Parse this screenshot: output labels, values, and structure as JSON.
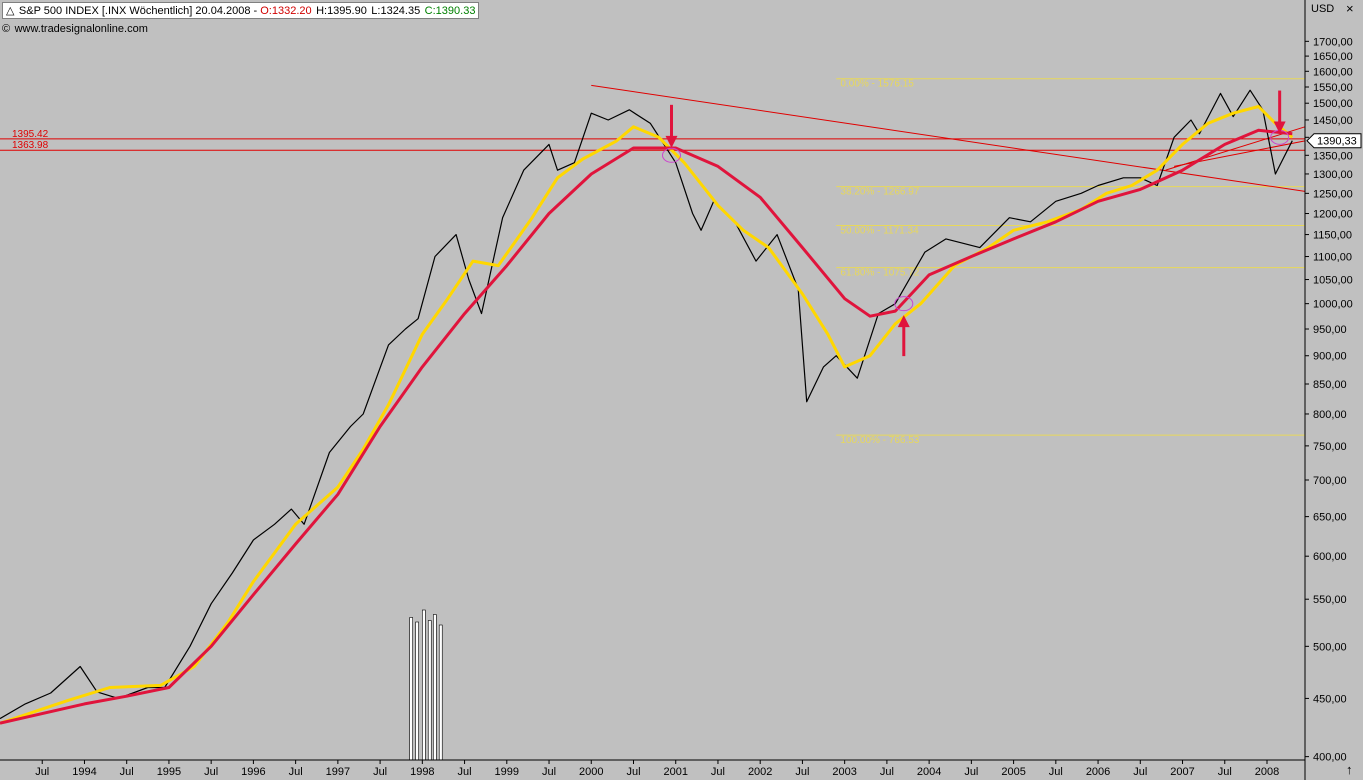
{
  "header": {
    "title": "S&P 500 INDEX [.INX  Wöchentlich] 20.04.2008 - ",
    "open": "O:1332.20",
    "high": " H:1395.90",
    "low": " L:1324.35",
    "close": " C:1390.33",
    "watermark": "www.tradesignalonline.com",
    "currency": "USD"
  },
  "colors": {
    "background": "#c0c0c0",
    "price": "#000000",
    "ma_fast": "#ffd700",
    "ma_slow": "#e0143c",
    "fib": "#e8d85a",
    "level": "#e00000",
    "annotation": "#e0143c",
    "highlight_circle": "#cc44cc"
  },
  "chart_data": {
    "type": "line",
    "scale": "log",
    "ylim": [
      380,
      1750
    ],
    "xlim": [
      1993.0,
      2008.45
    ],
    "grid": false,
    "legend": "none",
    "y_ticks": [
      1700,
      1650,
      1600,
      1550,
      1500,
      1450,
      1400,
      1350,
      1300,
      1250,
      1200,
      1150,
      1100,
      1050,
      1000,
      950,
      900,
      850,
      800,
      750,
      700,
      650,
      600,
      550,
      500,
      450,
      400
    ],
    "y_tick_labels": [
      "1700,00",
      "1650,00",
      "1600,00",
      "1550,00",
      "1500,00",
      "1450,00",
      "1400,00",
      "1350,00",
      "1300,00",
      "1250,00",
      "1200,00",
      "1150,00",
      "1100,00",
      "1050,00",
      "1000,00",
      "950,00",
      "900,00",
      "850,00",
      "800,00",
      "750,00",
      "700,00",
      "650,00",
      "600,00",
      "550,00",
      "500,00",
      "450,00",
      "400,00"
    ],
    "x_ticks": [
      {
        "x": 1993.5,
        "label": "Jul"
      },
      {
        "x": 1994.0,
        "label": "1994"
      },
      {
        "x": 1994.5,
        "label": "Jul"
      },
      {
        "x": 1995.0,
        "label": "1995"
      },
      {
        "x": 1995.5,
        "label": "Jul"
      },
      {
        "x": 1996.0,
        "label": "1996"
      },
      {
        "x": 1996.5,
        "label": "Jul"
      },
      {
        "x": 1997.0,
        "label": "1997"
      },
      {
        "x": 1997.5,
        "label": "Jul"
      },
      {
        "x": 1998.0,
        "label": "1998"
      },
      {
        "x": 1998.5,
        "label": "Jul"
      },
      {
        "x": 1999.0,
        "label": "1999"
      },
      {
        "x": 1999.5,
        "label": "Jul"
      },
      {
        "x": 2000.0,
        "label": "2000"
      },
      {
        "x": 2000.5,
        "label": "Jul"
      },
      {
        "x": 2001.0,
        "label": "2001"
      },
      {
        "x": 2001.5,
        "label": "Jul"
      },
      {
        "x": 2002.0,
        "label": "2002"
      },
      {
        "x": 2002.5,
        "label": "Jul"
      },
      {
        "x": 2003.0,
        "label": "2003"
      },
      {
        "x": 2003.5,
        "label": "Jul"
      },
      {
        "x": 2004.0,
        "label": "2004"
      },
      {
        "x": 2004.5,
        "label": "Jul"
      },
      {
        "x": 2005.0,
        "label": "2005"
      },
      {
        "x": 2005.5,
        "label": "Jul"
      },
      {
        "x": 2006.0,
        "label": "2006"
      },
      {
        "x": 2006.5,
        "label": "Jul"
      },
      {
        "x": 2007.0,
        "label": "2007"
      },
      {
        "x": 2007.5,
        "label": "Jul"
      },
      {
        "x": 2008.0,
        "label": "2008"
      }
    ],
    "series": [
      {
        "key": "price",
        "x": [
          1993.0,
          1993.3,
          1993.6,
          1993.95,
          1994.15,
          1994.4,
          1994.75,
          1994.95,
          1995.25,
          1995.5,
          1995.75,
          1996.0,
          1996.25,
          1996.45,
          1996.6,
          1996.9,
          1997.15,
          1997.3,
          1997.6,
          1997.8,
          1997.95,
          1998.15,
          1998.4,
          1998.55,
          1998.7,
          1998.95,
          1999.2,
          1999.5,
          1999.6,
          1999.8,
          2000.0,
          2000.2,
          2000.45,
          2000.7,
          2001.0,
          2001.2,
          2001.3,
          2001.45,
          2001.7,
          2001.95,
          2002.2,
          2002.45,
          2002.55,
          2002.75,
          2002.9,
          2003.15,
          2003.4,
          2003.6,
          2003.95,
          2004.2,
          2004.6,
          2004.95,
          2005.2,
          2005.5,
          2005.8,
          2006.0,
          2006.3,
          2006.5,
          2006.7,
          2006.9,
          2007.1,
          2007.2,
          2007.45,
          2007.6,
          2007.8,
          2007.95,
          2008.1,
          2008.3
        ],
        "y": [
          432,
          445,
          455,
          480,
          456,
          450,
          460,
          460,
          500,
          545,
          580,
          620,
          640,
          660,
          640,
          740,
          780,
          800,
          920,
          950,
          970,
          1100,
          1150,
          1050,
          980,
          1190,
          1310,
          1380,
          1310,
          1330,
          1470,
          1450,
          1480,
          1440,
          1330,
          1200,
          1160,
          1230,
          1180,
          1090,
          1150,
          1030,
          820,
          880,
          900,
          860,
          980,
          1000,
          1110,
          1140,
          1120,
          1190,
          1180,
          1230,
          1250,
          1270,
          1290,
          1290,
          1270,
          1400,
          1450,
          1410,
          1530,
          1460,
          1540,
          1480,
          1300,
          1390.33
        ]
      },
      {
        "key": "ma_fast",
        "x": [
          1993.0,
          1993.8,
          1994.3,
          1994.9,
          1995.3,
          1995.7,
          1996.0,
          1996.5,
          1997.0,
          1997.3,
          1997.6,
          1998.0,
          1998.3,
          1998.6,
          1998.9,
          1999.3,
          1999.6,
          1999.9,
          2000.3,
          2000.5,
          2000.8,
          2001.1,
          2001.5,
          2001.8,
          2002.1,
          2002.5,
          2002.8,
          2003.0,
          2003.3,
          2003.6,
          2003.9,
          2004.3,
          2004.7,
          2005.0,
          2005.4,
          2005.8,
          2006.1,
          2006.4,
          2006.7,
          2007.0,
          2007.3,
          2007.6,
          2007.9,
          2008.1,
          2008.3
        ],
        "y": [
          428,
          448,
          460,
          462,
          480,
          525,
          570,
          640,
          690,
          745,
          815,
          940,
          1010,
          1090,
          1080,
          1190,
          1290,
          1340,
          1390,
          1430,
          1400,
          1330,
          1220,
          1160,
          1120,
          1020,
          940,
          880,
          900,
          960,
          1000,
          1080,
          1120,
          1160,
          1180,
          1210,
          1250,
          1270,
          1310,
          1380,
          1440,
          1470,
          1490,
          1440,
          1400
        ]
      },
      {
        "key": "ma_slow",
        "x": [
          1993.0,
          1994.0,
          1994.5,
          1995.0,
          1995.5,
          1996.0,
          1996.5,
          1997.0,
          1997.5,
          1998.0,
          1998.5,
          1999.0,
          1999.5,
          2000.0,
          2000.5,
          2001.0,
          2001.5,
          2002.0,
          2002.5,
          2003.0,
          2003.3,
          2003.6,
          2004.0,
          2004.5,
          2005.0,
          2005.5,
          2006.0,
          2006.5,
          2007.0,
          2007.5,
          2007.9,
          2008.3
        ],
        "y": [
          428,
          445,
          452,
          460,
          500,
          555,
          615,
          680,
          780,
          880,
          980,
          1080,
          1200,
          1300,
          1370,
          1370,
          1320,
          1240,
          1120,
          1010,
          975,
          985,
          1060,
          1100,
          1140,
          1180,
          1230,
          1260,
          1310,
          1380,
          1420,
          1410
        ]
      }
    ],
    "fibonacci": [
      {
        "label": "0.00% - 1576.15",
        "value": 1576.15
      },
      {
        "label": "38.20% - 1266.97",
        "value": 1266.97
      },
      {
        "label": "50.00% - 1171.34",
        "value": 1171.34
      },
      {
        "label": "61.80% - 1075.72",
        "value": 1075.72
      },
      {
        "label": "100.00% - 766.53",
        "value": 766.53
      }
    ],
    "levels": [
      {
        "label": "1395.42",
        "value": 1395.42
      },
      {
        "label": "1363.98",
        "value": 1363.98
      }
    ],
    "trendlines": [
      {
        "x": [
          2000.0,
          2008.45
        ],
        "y": [
          1555,
          1255
        ]
      },
      {
        "x": [
          2006.8,
          2008.45
        ],
        "y": [
          1310,
          1430
        ]
      },
      {
        "x": [
          2006.9,
          2008.45
        ],
        "y": [
          1320,
          1390
        ]
      }
    ],
    "last_price": {
      "label": "1390,33",
      "value": 1390.33
    },
    "arrows": [
      {
        "direction": "down",
        "x": 2000.95,
        "y": 1365
      },
      {
        "direction": "up",
        "x": 2003.7,
        "y": 985
      },
      {
        "direction": "down",
        "x": 2008.15,
        "y": 1405
      }
    ],
    "circles": [
      {
        "x": 2000.95,
        "y": 1350
      },
      {
        "x": 2003.7,
        "y": 1000
      },
      {
        "x": 2008.15,
        "y": 1400
      }
    ],
    "volume_bars": {
      "x": [
        1997.85,
        1997.92,
        1998.0,
        1998.07,
        1998.13,
        1998.2
      ],
      "height_fraction": [
        0.95,
        0.92,
        1.0,
        0.93,
        0.97,
        0.9
      ]
    }
  }
}
